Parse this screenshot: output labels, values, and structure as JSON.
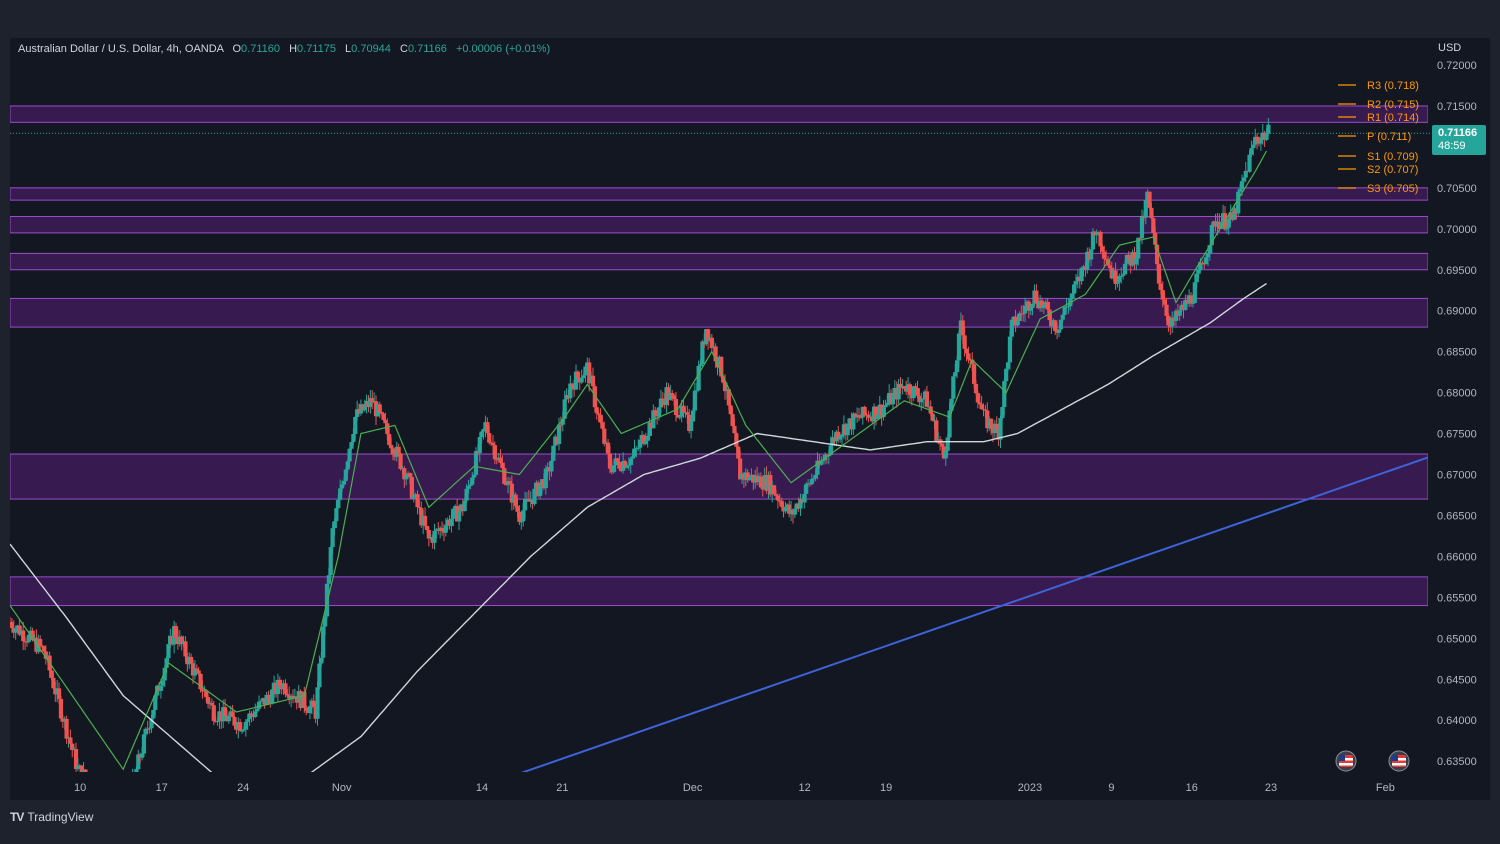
{
  "header": {
    "symbol": "Australian Dollar / U.S. Dollar, 4h, OANDA",
    "open_label": "O",
    "open": "0.71160",
    "high_label": "H",
    "high": "0.71175",
    "low_label": "L",
    "low": "0.70944",
    "close_label": "C",
    "close": "0.71166",
    "change": "+0.00006 (+0.01%)"
  },
  "axis": {
    "currency": "USD"
  },
  "last_price": {
    "value": "0.71166",
    "countdown": "48:59"
  },
  "brand": {
    "name": "TradingView",
    "logo_text": "TV"
  },
  "colors": {
    "up": "#26a69a",
    "down": "#ef5350",
    "zone_fill": "#7b1fa2",
    "zone_stroke": "#9c4dcc",
    "trendline": "#3d63d8",
    "sma_fast": "#4caf50",
    "sma_slow": "#cfd8dc",
    "pivot": "#ff9800"
  },
  "chart_data": {
    "type": "candlestick",
    "title": "Australian Dollar / U.S. Dollar, 4h, OANDA",
    "ylim": [
      0.6325,
      0.7215
    ],
    "y_ticks": [
      "0.72000",
      "0.71500",
      "0.71000",
      "0.70500",
      "0.70000",
      "0.69500",
      "0.69000",
      "0.68500",
      "0.68000",
      "0.67500",
      "0.67000",
      "0.66500",
      "0.66000",
      "0.65500",
      "0.65000",
      "0.64500",
      "0.64000",
      "0.63500"
    ],
    "x_ticks": [
      "10",
      "17",
      "24",
      "Nov",
      "14",
      "21",
      "Dec",
      "12",
      "19",
      "2023",
      "9",
      "16",
      "23",
      "Feb"
    ],
    "grid": false,
    "path_keypoints": [
      [
        0.0,
        0.652
      ],
      [
        3.0,
        0.6485
      ],
      [
        6.0,
        0.634
      ],
      [
        10.0,
        0.628
      ],
      [
        14.5,
        0.651
      ],
      [
        18.0,
        0.641
      ],
      [
        20.5,
        0.6395
      ],
      [
        24.0,
        0.6445
      ],
      [
        27.0,
        0.641
      ],
      [
        28.5,
        0.663
      ],
      [
        30.5,
        0.677
      ],
      [
        32.0,
        0.679
      ],
      [
        35.0,
        0.67
      ],
      [
        37.0,
        0.662
      ],
      [
        40.0,
        0.666
      ],
      [
        42.0,
        0.676
      ],
      [
        45.0,
        0.665
      ],
      [
        47.5,
        0.67
      ],
      [
        49.5,
        0.681
      ],
      [
        51.0,
        0.683
      ],
      [
        53.0,
        0.671
      ],
      [
        55.0,
        0.672
      ],
      [
        58.0,
        0.68
      ],
      [
        60.0,
        0.676
      ],
      [
        61.5,
        0.688
      ],
      [
        63.0,
        0.682
      ],
      [
        64.5,
        0.67
      ],
      [
        67.0,
        0.669
      ],
      [
        69.0,
        0.665
      ],
      [
        71.5,
        0.671
      ],
      [
        73.0,
        0.675
      ],
      [
        75.0,
        0.677
      ],
      [
        77.0,
        0.678
      ],
      [
        79.0,
        0.681
      ],
      [
        81.0,
        0.679
      ],
      [
        82.5,
        0.672
      ],
      [
        84.0,
        0.688
      ],
      [
        86.0,
        0.677
      ],
      [
        87.3,
        0.675
      ],
      [
        88.5,
        0.688
      ],
      [
        90.5,
        0.692
      ],
      [
        92.5,
        0.688
      ],
      [
        94.5,
        0.694
      ],
      [
        96.0,
        0.7
      ],
      [
        97.5,
        0.694
      ],
      [
        99.5,
        0.697
      ],
      [
        100.5,
        0.704
      ],
      [
        101.5,
        0.694
      ],
      [
        102.5,
        0.688
      ],
      [
        104.5,
        0.692
      ],
      [
        106.5,
        0.701
      ],
      [
        108.0,
        0.701
      ],
      [
        110.0,
        0.711
      ],
      [
        111.2,
        0.7117
      ]
    ],
    "sma_fast_keypoints": [
      [
        0.0,
        0.654
      ],
      [
        5.0,
        0.644
      ],
      [
        10.0,
        0.634
      ],
      [
        14.0,
        0.647
      ],
      [
        20.0,
        0.641
      ],
      [
        26.0,
        0.643
      ],
      [
        29.0,
        0.66
      ],
      [
        31.0,
        0.675
      ],
      [
        34.0,
        0.676
      ],
      [
        37.0,
        0.666
      ],
      [
        41.0,
        0.671
      ],
      [
        45.0,
        0.67
      ],
      [
        49.0,
        0.677
      ],
      [
        51.0,
        0.681
      ],
      [
        54.0,
        0.675
      ],
      [
        59.0,
        0.678
      ],
      [
        62.0,
        0.685
      ],
      [
        65.0,
        0.676
      ],
      [
        69.0,
        0.669
      ],
      [
        74.0,
        0.674
      ],
      [
        79.0,
        0.679
      ],
      [
        83.0,
        0.677
      ],
      [
        85.0,
        0.684
      ],
      [
        88.0,
        0.68
      ],
      [
        91.0,
        0.689
      ],
      [
        95.0,
        0.692
      ],
      [
        98.0,
        0.698
      ],
      [
        101.0,
        0.699
      ],
      [
        103.0,
        0.691
      ],
      [
        106.0,
        0.698
      ],
      [
        110.0,
        0.707
      ],
      [
        111.2,
        0.71
      ]
    ],
    "sma_slow_keypoints": [
      [
        0.0,
        0.6615
      ],
      [
        5.0,
        0.6525
      ],
      [
        10.0,
        0.643
      ],
      [
        15.0,
        0.637
      ],
      [
        20.0,
        0.631
      ],
      [
        26.0,
        0.633
      ],
      [
        31.0,
        0.638
      ],
      [
        36.0,
        0.646
      ],
      [
        41.0,
        0.653
      ],
      [
        46.0,
        0.66
      ],
      [
        51.0,
        0.666
      ],
      [
        56.0,
        0.67
      ],
      [
        61.0,
        0.672
      ],
      [
        66.0,
        0.675
      ],
      [
        71.0,
        0.674
      ],
      [
        76.0,
        0.673
      ],
      [
        81.0,
        0.674
      ],
      [
        86.0,
        0.674
      ],
      [
        89.0,
        0.675
      ],
      [
        93.0,
        0.678
      ],
      [
        97.0,
        0.681
      ],
      [
        101.0,
        0.6845
      ],
      [
        106.0,
        0.6885
      ],
      [
        109.0,
        0.6915
      ],
      [
        111.2,
        0.6935
      ]
    ],
    "support_resistance_zones": [
      [
        0.713,
        0.715
      ],
      [
        0.7035,
        0.705
      ],
      [
        0.6995,
        0.7015
      ],
      [
        0.695,
        0.697
      ],
      [
        0.688,
        0.6915
      ],
      [
        0.667,
        0.6725
      ],
      [
        0.654,
        0.6575
      ]
    ],
    "trendline": {
      "points": [
        [
          0.633,
          44.0
        ],
        [
          0.6722,
          125.5
        ]
      ],
      "note": ""
    },
    "pivot_levels": [
      {
        "label": "R3 (0.718)",
        "value": 0.718
      },
      {
        "label": "R2 (0.715)",
        "value": 0.715
      },
      {
        "label": "R1 (0.714)",
        "value": 0.714
      },
      {
        "label": "P (0.711)",
        "value": 0.711
      },
      {
        "label": "S1 (0.709)",
        "value": 0.709
      },
      {
        "label": "S2 (0.707)",
        "value": 0.707
      },
      {
        "label": "S3 (0.705)",
        "value": 0.705
      }
    ],
    "event_markers": [
      {
        "flag": "US"
      },
      {
        "flag": "US"
      }
    ]
  }
}
